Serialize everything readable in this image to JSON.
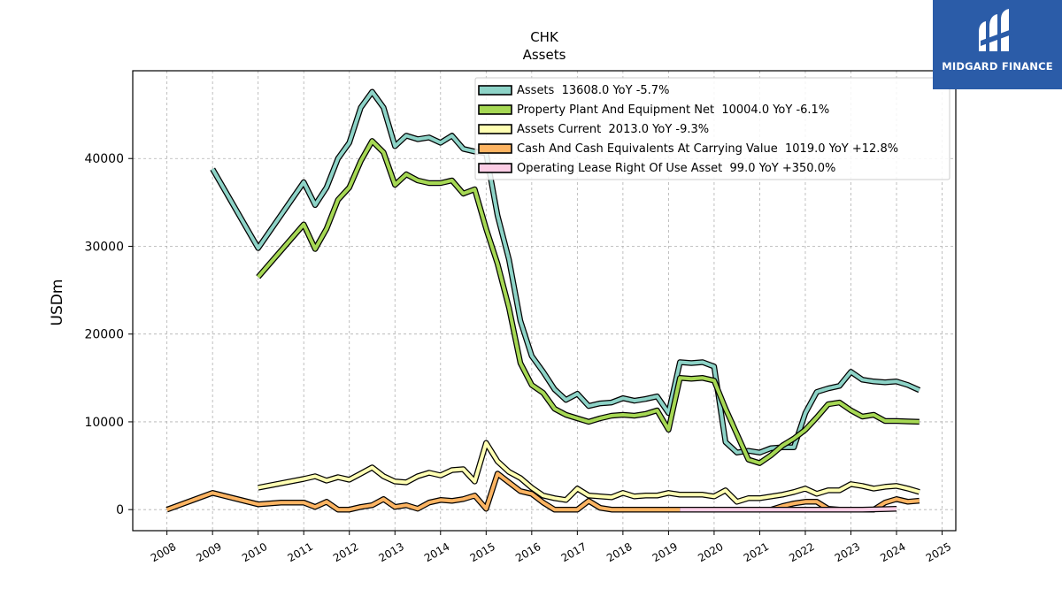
{
  "brand": {
    "name": "MIDGARD FINANCE",
    "icon": "midgard-logo-icon",
    "bg_color": "#2b5ca8"
  },
  "chart_data": {
    "type": "line",
    "title": "CHK",
    "subtitle": "Assets",
    "xlabel": "",
    "ylabel": "USDm",
    "xlim": [
      2007.25,
      2025.3
    ],
    "ylim": [
      -2400,
      50000
    ],
    "x_ticks": [
      2008,
      2009,
      2010,
      2011,
      2012,
      2013,
      2014,
      2015,
      2016,
      2017,
      2018,
      2019,
      2020,
      2021,
      2022,
      2023,
      2024,
      2025
    ],
    "y_ticks": [
      0,
      10000,
      20000,
      30000,
      40000
    ],
    "grid": true,
    "legend_position": "top-right",
    "series": [
      {
        "name": "Assets",
        "legend_label": "Assets  13608.0 YoY -5.7%",
        "color": "#8dd3c7",
        "points": [
          [
            2009.0,
            38800
          ],
          [
            2010.0,
            29800
          ],
          [
            2011.0,
            37300
          ],
          [
            2011.25,
            34700
          ],
          [
            2011.5,
            36700
          ],
          [
            2011.75,
            40000
          ],
          [
            2012.0,
            41800
          ],
          [
            2012.25,
            45800
          ],
          [
            2012.5,
            47600
          ],
          [
            2012.75,
            45800
          ],
          [
            2013.0,
            41400
          ],
          [
            2013.25,
            42600
          ],
          [
            2013.5,
            42200
          ],
          [
            2013.75,
            42400
          ],
          [
            2014.0,
            41800
          ],
          [
            2014.25,
            42600
          ],
          [
            2014.5,
            41100
          ],
          [
            2014.75,
            40800
          ],
          [
            2015.0,
            40600
          ],
          [
            2015.25,
            33500
          ],
          [
            2015.5,
            28500
          ],
          [
            2015.75,
            21500
          ],
          [
            2016.0,
            17500
          ],
          [
            2016.25,
            15700
          ],
          [
            2016.5,
            13700
          ],
          [
            2016.75,
            12500
          ],
          [
            2017.0,
            13200
          ],
          [
            2017.25,
            11800
          ],
          [
            2017.5,
            12100
          ],
          [
            2017.75,
            12200
          ],
          [
            2018.0,
            12700
          ],
          [
            2018.25,
            12400
          ],
          [
            2018.5,
            12600
          ],
          [
            2018.75,
            12900
          ],
          [
            2019.0,
            11000
          ],
          [
            2019.25,
            16800
          ],
          [
            2019.5,
            16700
          ],
          [
            2019.75,
            16800
          ],
          [
            2020.0,
            16300
          ],
          [
            2020.25,
            7700
          ],
          [
            2020.5,
            6500
          ],
          [
            2020.75,
            6700
          ],
          [
            2021.0,
            6500
          ],
          [
            2021.25,
            7000
          ],
          [
            2021.5,
            7100
          ],
          [
            2021.75,
            7100
          ],
          [
            2022.0,
            11000
          ],
          [
            2022.25,
            13400
          ],
          [
            2022.5,
            13800
          ],
          [
            2022.75,
            14100
          ],
          [
            2023.0,
            15700
          ],
          [
            2023.25,
            14800
          ],
          [
            2023.5,
            14600
          ],
          [
            2023.75,
            14500
          ],
          [
            2024.0,
            14600
          ],
          [
            2024.25,
            14200
          ],
          [
            2024.5,
            13608
          ]
        ]
      },
      {
        "name": "Property Plant And Equipment Net",
        "legend_label": "Property Plant And Equipment Net  10004.0 YoY -6.1%",
        "color": "#a6d854",
        "points": [
          [
            2010.0,
            26500
          ],
          [
            2011.0,
            32500
          ],
          [
            2011.25,
            29700
          ],
          [
            2011.5,
            32000
          ],
          [
            2011.75,
            35300
          ],
          [
            2012.0,
            36700
          ],
          [
            2012.25,
            39700
          ],
          [
            2012.5,
            42000
          ],
          [
            2012.75,
            40700
          ],
          [
            2013.0,
            37000
          ],
          [
            2013.25,
            38200
          ],
          [
            2013.5,
            37500
          ],
          [
            2013.75,
            37200
          ],
          [
            2014.0,
            37200
          ],
          [
            2014.25,
            37500
          ],
          [
            2014.5,
            36000
          ],
          [
            2014.75,
            36500
          ],
          [
            2015.0,
            32000
          ],
          [
            2015.25,
            28000
          ],
          [
            2015.5,
            23000
          ],
          [
            2015.75,
            16700
          ],
          [
            2016.0,
            14200
          ],
          [
            2016.25,
            13300
          ],
          [
            2016.5,
            11500
          ],
          [
            2016.75,
            10800
          ],
          [
            2017.0,
            10400
          ],
          [
            2017.25,
            10000
          ],
          [
            2017.5,
            10400
          ],
          [
            2017.75,
            10700
          ],
          [
            2018.0,
            10800
          ],
          [
            2018.25,
            10700
          ],
          [
            2018.5,
            10900
          ],
          [
            2018.75,
            11300
          ],
          [
            2019.0,
            9100
          ],
          [
            2019.25,
            15000
          ],
          [
            2019.5,
            14900
          ],
          [
            2019.75,
            15000
          ],
          [
            2020.0,
            14700
          ],
          [
            2020.25,
            11500
          ],
          [
            2020.5,
            8600
          ],
          [
            2020.75,
            5700
          ],
          [
            2021.0,
            5300
          ],
          [
            2021.25,
            6200
          ],
          [
            2021.5,
            7300
          ],
          [
            2021.75,
            8100
          ],
          [
            2022.0,
            9100
          ],
          [
            2022.25,
            10500
          ],
          [
            2022.5,
            12000
          ],
          [
            2022.75,
            12200
          ],
          [
            2023.0,
            11300
          ],
          [
            2023.25,
            10600
          ],
          [
            2023.5,
            10800
          ],
          [
            2023.75,
            10100
          ],
          [
            2024.0,
            10100
          ],
          [
            2024.25,
            10050
          ],
          [
            2024.5,
            10004
          ]
        ]
      },
      {
        "name": "Assets Current",
        "legend_label": "Assets Current  2013.0 YoY -9.3%",
        "color": "#ffffb3",
        "points": [
          [
            2010.0,
            2500
          ],
          [
            2011.0,
            3500
          ],
          [
            2011.25,
            3800
          ],
          [
            2011.5,
            3300
          ],
          [
            2011.75,
            3700
          ],
          [
            2012.0,
            3400
          ],
          [
            2012.25,
            4100
          ],
          [
            2012.5,
            4800
          ],
          [
            2012.75,
            3800
          ],
          [
            2013.0,
            3200
          ],
          [
            2013.25,
            3100
          ],
          [
            2013.5,
            3800
          ],
          [
            2013.75,
            4200
          ],
          [
            2014.0,
            3900
          ],
          [
            2014.25,
            4500
          ],
          [
            2014.5,
            4600
          ],
          [
            2014.75,
            3200
          ],
          [
            2015.0,
            7600
          ],
          [
            2015.25,
            5500
          ],
          [
            2015.5,
            4300
          ],
          [
            2015.75,
            3600
          ],
          [
            2016.0,
            2500
          ],
          [
            2016.25,
            1600
          ],
          [
            2016.5,
            1300
          ],
          [
            2016.75,
            1100
          ],
          [
            2017.0,
            2400
          ],
          [
            2017.25,
            1600
          ],
          [
            2017.5,
            1500
          ],
          [
            2017.75,
            1400
          ],
          [
            2018.0,
            1900
          ],
          [
            2018.25,
            1500
          ],
          [
            2018.5,
            1600
          ],
          [
            2018.75,
            1600
          ],
          [
            2019.0,
            1900
          ],
          [
            2019.25,
            1700
          ],
          [
            2019.5,
            1700
          ],
          [
            2019.75,
            1700
          ],
          [
            2020.0,
            1500
          ],
          [
            2020.25,
            2200
          ],
          [
            2020.5,
            900
          ],
          [
            2020.75,
            1300
          ],
          [
            2021.0,
            1300
          ],
          [
            2021.25,
            1500
          ],
          [
            2021.5,
            1700
          ],
          [
            2021.75,
            2000
          ],
          [
            2022.0,
            2400
          ],
          [
            2022.25,
            1800
          ],
          [
            2022.5,
            2200
          ],
          [
            2022.75,
            2200
          ],
          [
            2023.0,
            2900
          ],
          [
            2023.25,
            2700
          ],
          [
            2023.5,
            2400
          ],
          [
            2023.75,
            2600
          ],
          [
            2024.0,
            2700
          ],
          [
            2024.25,
            2400
          ],
          [
            2024.5,
            2013
          ]
        ]
      },
      {
        "name": "Cash And Cash Equivalents At Carrying Value",
        "legend_label": "Cash And Cash Equivalents At Carrying Value  1019.0 YoY +12.8%",
        "color": "#fdb462",
        "points": [
          [
            2008.0,
            0
          ],
          [
            2009.0,
            1900
          ],
          [
            2010.0,
            600
          ],
          [
            2010.5,
            800
          ],
          [
            2011.0,
            800
          ],
          [
            2011.25,
            300
          ],
          [
            2011.5,
            900
          ],
          [
            2011.75,
            0
          ],
          [
            2012.0,
            0
          ],
          [
            2012.25,
            300
          ],
          [
            2012.5,
            500
          ],
          [
            2012.75,
            1200
          ],
          [
            2013.0,
            300
          ],
          [
            2013.25,
            500
          ],
          [
            2013.5,
            100
          ],
          [
            2013.75,
            800
          ],
          [
            2014.0,
            1100
          ],
          [
            2014.25,
            1000
          ],
          [
            2014.5,
            1200
          ],
          [
            2014.75,
            1600
          ],
          [
            2015.0,
            100
          ],
          [
            2015.25,
            4100
          ],
          [
            2015.5,
            3100
          ],
          [
            2015.75,
            2100
          ],
          [
            2016.0,
            1800
          ],
          [
            2016.25,
            800
          ],
          [
            2016.5,
            0
          ],
          [
            2016.75,
            0
          ],
          [
            2017.0,
            0
          ],
          [
            2017.25,
            1000
          ],
          [
            2017.5,
            200
          ],
          [
            2017.75,
            0
          ],
          [
            2018.0,
            0
          ],
          [
            2018.25,
            0
          ],
          [
            2018.5,
            0
          ],
          [
            2018.75,
            0
          ],
          [
            2019.0,
            0
          ],
          [
            2019.25,
            0
          ],
          [
            2019.5,
            0
          ],
          [
            2019.75,
            0
          ],
          [
            2020.0,
            0
          ],
          [
            2020.25,
            0
          ],
          [
            2020.5,
            0
          ],
          [
            2020.75,
            0
          ],
          [
            2021.0,
            0
          ],
          [
            2021.25,
            0
          ],
          [
            2021.5,
            400
          ],
          [
            2021.75,
            700
          ],
          [
            2022.0,
            900
          ],
          [
            2022.25,
            900
          ],
          [
            2022.5,
            100
          ],
          [
            2022.75,
            0
          ],
          [
            2023.0,
            0
          ],
          [
            2023.25,
            0
          ],
          [
            2023.5,
            0
          ],
          [
            2023.75,
            800
          ],
          [
            2024.0,
            1200
          ],
          [
            2024.25,
            900
          ],
          [
            2024.5,
            1019
          ]
        ]
      },
      {
        "name": "Operating Lease Right Of Use Asset",
        "legend_label": "Operating Lease Right Of Use Asset  99.0 YoY +350.0%",
        "color": "#fccde5",
        "points": [
          [
            2019.25,
            0
          ],
          [
            2019.75,
            0
          ],
          [
            2020.25,
            0
          ],
          [
            2020.75,
            0
          ],
          [
            2021.25,
            0
          ],
          [
            2021.75,
            0
          ],
          [
            2022.25,
            0
          ],
          [
            2022.75,
            0
          ],
          [
            2023.25,
            0
          ],
          [
            2023.75,
            60
          ],
          [
            2024.0,
            99
          ]
        ]
      }
    ]
  }
}
